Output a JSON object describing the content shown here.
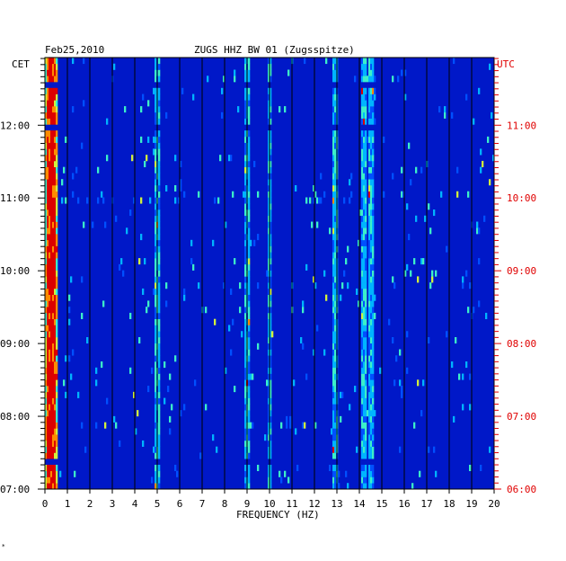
{
  "chart_data": {
    "type": "heatmap",
    "title_date": "Feb25,2010",
    "title_station": "ZUGS HHZ BW 01 (Zugsspitze)",
    "left_axis_label": "CET",
    "right_axis_label": "UTC",
    "xlabel": "FREQUENCY (HZ)",
    "xlim": [
      0,
      20
    ],
    "x_ticks": [
      "0",
      "1",
      "2",
      "3",
      "4",
      "5",
      "6",
      "7",
      "8",
      "9",
      "10",
      "11",
      "12",
      "13",
      "14",
      "15",
      "16",
      "17",
      "18",
      "19",
      "20"
    ],
    "cet_ticks": [
      {
        "label": "12:00",
        "hour": 12
      },
      {
        "label": "11:00",
        "hour": 11
      },
      {
        "label": "10:00",
        "hour": 10
      },
      {
        "label": "09:00",
        "hour": 9
      },
      {
        "label": "08:00",
        "hour": 8
      },
      {
        "label": "07:00",
        "hour": 7
      }
    ],
    "utc_ticks": [
      {
        "label": "11:00",
        "hour": 12
      },
      {
        "label": "10:00",
        "hour": 11
      },
      {
        "label": "09:00",
        "hour": 10
      },
      {
        "label": "08:00",
        "hour": 9
      },
      {
        "label": "07:00",
        "hour": 8
      },
      {
        "label": "06:00",
        "hour": 7
      }
    ],
    "time_range_cet": [
      7.0,
      12.93
    ],
    "rows_per_hour": 12,
    "colorscale": [
      "#00008c",
      "#0018c8",
      "#0050ff",
      "#00b4ff",
      "#3cf0c8",
      "#d2f03c",
      "#ff8c00",
      "#dc0000"
    ],
    "strong_frequencies_hz": [
      0.2,
      0.35,
      5.0,
      9.0,
      10.0,
      12.9,
      14.2,
      14.5
    ]
  },
  "footer_mark": "*"
}
